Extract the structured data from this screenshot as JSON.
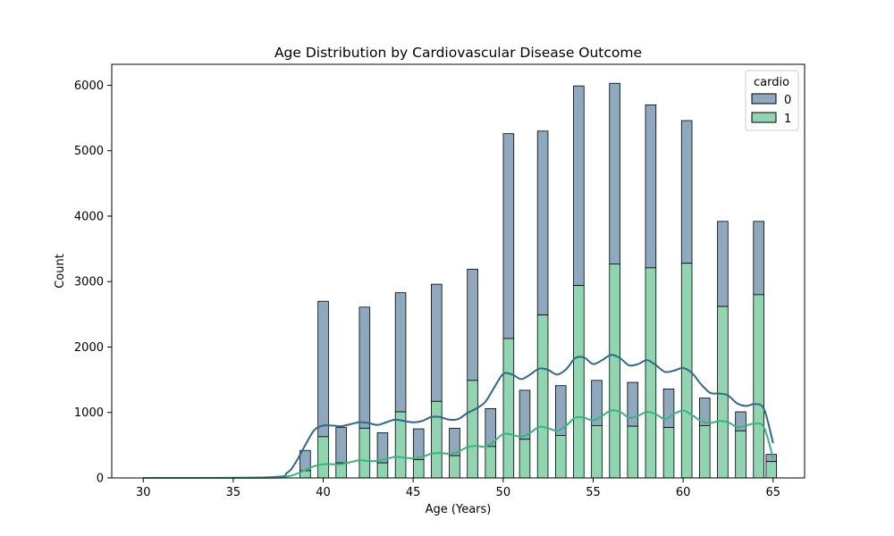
{
  "chart_data": {
    "type": "bar",
    "title": "Age Distribution by Cardiovascular Disease Outcome",
    "xlabel": "Age (Years)",
    "ylabel": "Count",
    "xlim": [
      28.25,
      66.75
    ],
    "ylim": [
      0,
      6320
    ],
    "xticks": [
      30,
      35,
      40,
      45,
      50,
      55,
      60,
      65
    ],
    "yticks": [
      0,
      1000,
      2000,
      3000,
      4000,
      5000,
      6000
    ],
    "grid": false,
    "stacked": true,
    "bin_width": 0.583,
    "legend": {
      "title": "cardio",
      "placement": "top-right",
      "entries": [
        "0",
        "1"
      ]
    },
    "series": [
      {
        "name": "0",
        "color": "#8ea9bd",
        "edge_color": "#000000",
        "kde_color": "#2e6a8a",
        "x": [
          39.0,
          40.0,
          41.0,
          42.3,
          43.3,
          44.3,
          45.3,
          46.3,
          47.3,
          48.3,
          49.3,
          50.3,
          51.2,
          52.2,
          53.2,
          54.2,
          55.2,
          56.2,
          57.2,
          58.2,
          59.2,
          60.2,
          61.2,
          62.2,
          63.2,
          64.2,
          64.9
        ],
        "total": [
          420,
          2700,
          770,
          2610,
          690,
          2830,
          750,
          2960,
          760,
          3190,
          1060,
          5260,
          1340,
          5300,
          1410,
          5990,
          1490,
          6030,
          1460,
          5700,
          1360,
          5460,
          1220,
          3920,
          1010,
          3920,
          360
        ],
        "kde_x": [
          30,
          37,
          38,
          38.5,
          39,
          39.5,
          40,
          40.5,
          41,
          41.5,
          42,
          42.5,
          43,
          43.5,
          44,
          44.5,
          45,
          45.5,
          46,
          46.5,
          47,
          47.5,
          48,
          48.5,
          49,
          49.5,
          50,
          50.5,
          51,
          51.5,
          52,
          52.5,
          53,
          53.5,
          54,
          54.5,
          55,
          55.5,
          56,
          56.5,
          57,
          57.5,
          58,
          58.5,
          59,
          59.5,
          60,
          60.5,
          61,
          61.5,
          62,
          62.5,
          63,
          63.5,
          64,
          64.5,
          65
        ],
        "kde_y": [
          0,
          10,
          80,
          250,
          500,
          730,
          800,
          800,
          790,
          820,
          850,
          840,
          810,
          850,
          890,
          870,
          850,
          870,
          930,
          930,
          890,
          900,
          990,
          1060,
          1160,
          1380,
          1590,
          1580,
          1510,
          1580,
          1670,
          1650,
          1580,
          1660,
          1830,
          1840,
          1740,
          1800,
          1880,
          1830,
          1720,
          1740,
          1800,
          1720,
          1620,
          1640,
          1680,
          1600,
          1430,
          1300,
          1290,
          1260,
          1140,
          1100,
          1130,
          1050,
          530
        ]
      },
      {
        "name": "1",
        "color": "#8fd6b0",
        "edge_color": "#000000",
        "kde_color": "#35b77a",
        "x": [
          39.0,
          40.0,
          41.0,
          42.3,
          43.3,
          44.3,
          45.3,
          46.3,
          47.3,
          48.3,
          49.3,
          50.3,
          51.2,
          52.2,
          53.2,
          54.2,
          55.2,
          56.2,
          57.2,
          58.2,
          59.2,
          60.2,
          61.2,
          62.2,
          63.2,
          64.2,
          64.9
        ],
        "values": [
          110,
          630,
          230,
          760,
          230,
          1010,
          280,
          1170,
          340,
          1490,
          480,
          2130,
          590,
          2490,
          650,
          2940,
          800,
          3270,
          790,
          3210,
          770,
          3280,
          800,
          2620,
          720,
          2800,
          250
        ],
        "kde_x": [
          30,
          37,
          38,
          38.5,
          39,
          39.5,
          40,
          40.5,
          41,
          41.5,
          42,
          42.5,
          43,
          43.5,
          44,
          44.5,
          45,
          45.5,
          46,
          46.5,
          47,
          47.5,
          48,
          48.5,
          49,
          49.5,
          50,
          50.5,
          51,
          51.5,
          52,
          52.5,
          53,
          53.5,
          54,
          54.5,
          55,
          55.5,
          56,
          56.5,
          57,
          57.5,
          58,
          58.5,
          59,
          59.5,
          60,
          60.5,
          61,
          61.5,
          62,
          62.5,
          63,
          63.5,
          64,
          64.5,
          65
        ],
        "kde_y": [
          0,
          2,
          20,
          60,
          120,
          180,
          210,
          210,
          210,
          240,
          270,
          260,
          260,
          290,
          320,
          310,
          300,
          320,
          370,
          380,
          370,
          400,
          470,
          490,
          480,
          560,
          670,
          660,
          630,
          690,
          780,
          760,
          720,
          800,
          920,
          920,
          880,
          950,
          1030,
          1010,
          920,
          950,
          1010,
          970,
          900,
          980,
          1030,
          960,
          870,
          840,
          870,
          850,
          780,
          800,
          830,
          770,
          300
        ]
      }
    ]
  }
}
